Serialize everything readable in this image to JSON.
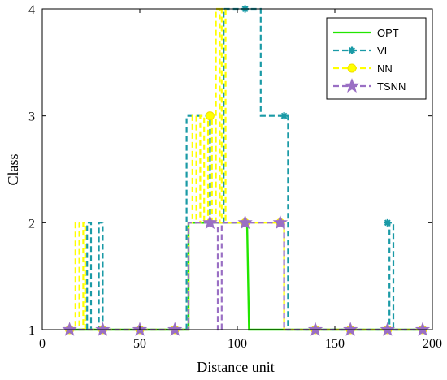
{
  "chart_data": {
    "type": "line",
    "xlabel": "Distance unit",
    "ylabel": "Class",
    "xlim": [
      0,
      200
    ],
    "ylim": [
      1,
      4
    ],
    "xticks": [
      "0",
      "50",
      "100",
      "150",
      "200"
    ],
    "yticks": [
      "1",
      "2",
      "3",
      "4"
    ],
    "legend_position": "top-right",
    "series": [
      {
        "name": "OPT",
        "color": "#22e600",
        "style": "solid",
        "marker": "none",
        "x": [
          14,
          75,
          75,
          105,
          106,
          195
        ],
        "y": [
          1,
          1,
          2,
          2,
          1,
          1
        ]
      },
      {
        "name": "VI",
        "color": "#1a9aa6",
        "style": "dashed",
        "marker": "asterisk",
        "x": [
          14,
          23,
          23,
          25,
          25,
          29,
          29,
          31,
          31,
          74,
          74,
          86,
          86,
          93,
          93,
          106,
          106,
          112,
          112,
          124,
          124,
          126,
          126,
          178,
          178,
          180,
          180,
          195
        ],
        "y": [
          1,
          1,
          2,
          2,
          1,
          1,
          2,
          2,
          1,
          1,
          3,
          3,
          2,
          2,
          4,
          4,
          4,
          4,
          3,
          3,
          3,
          3,
          1,
          1,
          2,
          2,
          1,
          1
        ],
        "marker_x": [
          14,
          31,
          50,
          68,
          86,
          104,
          124,
          140,
          158,
          177,
          195
        ],
        "marker_y": [
          1,
          1,
          1,
          1,
          3,
          4,
          3,
          1,
          1,
          2,
          1
        ]
      },
      {
        "name": "NN",
        "color": "#ffff00",
        "style": "dashed",
        "marker": "circle",
        "x": [
          14,
          17,
          17,
          19,
          19,
          21,
          21,
          22,
          22,
          75,
          75,
          77,
          77,
          79,
          79,
          81,
          81,
          83,
          83,
          85,
          85,
          87,
          87,
          89,
          89,
          91,
          91,
          92,
          92,
          94,
          94,
          95,
          95,
          124,
          124,
          195
        ],
        "y": [
          1,
          1,
          2,
          2,
          1,
          1,
          2,
          2,
          1,
          1,
          2,
          2,
          3,
          3,
          2,
          2,
          3,
          3,
          2,
          2,
          3,
          3,
          2,
          2,
          4,
          4,
          2,
          2,
          4,
          4,
          2,
          2,
          2,
          2,
          1,
          1
        ],
        "marker_x": [
          14,
          31,
          50,
          68,
          86,
          104,
          122,
          140,
          158,
          177,
          195
        ],
        "marker_y": [
          1,
          1,
          1,
          1,
          3,
          2,
          2,
          1,
          1,
          1,
          1
        ]
      },
      {
        "name": "TSNN",
        "color": "#9a6fc4",
        "style": "dashed",
        "marker": "pentagram",
        "x": [
          14,
          75,
          75,
          90,
          90,
          92,
          92,
          124,
          124,
          195
        ],
        "y": [
          1,
          1,
          2,
          2,
          1,
          1,
          2,
          2,
          1,
          1
        ],
        "marker_x": [
          14,
          31,
          50,
          68,
          86,
          104,
          122,
          140,
          158,
          177,
          195
        ],
        "marker_y": [
          1,
          1,
          1,
          1,
          2,
          2,
          2,
          1,
          1,
          1,
          1
        ]
      }
    ]
  }
}
